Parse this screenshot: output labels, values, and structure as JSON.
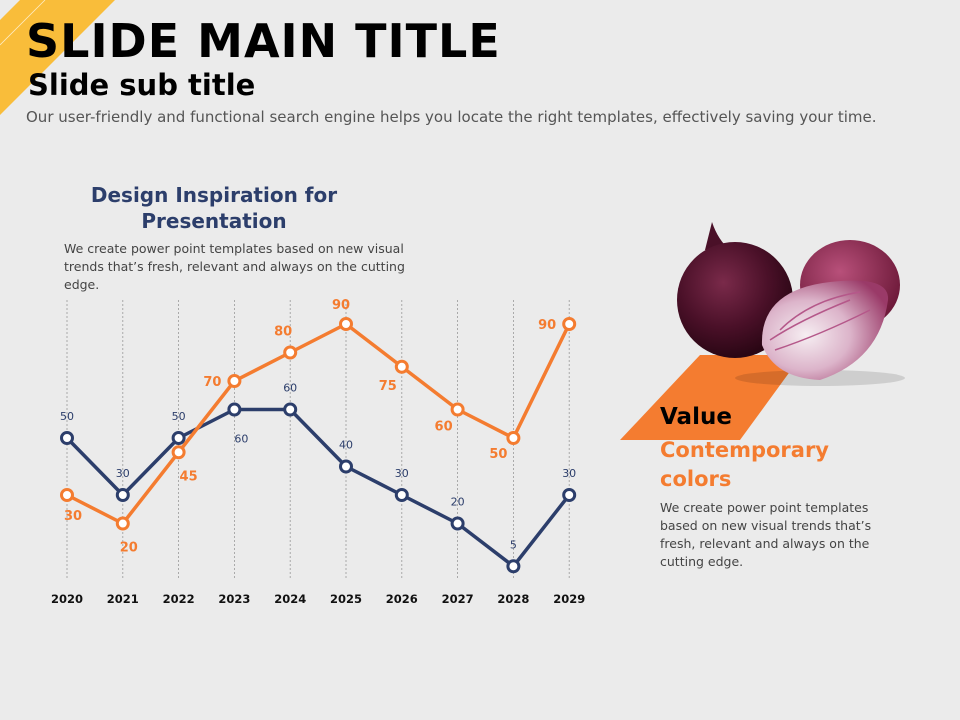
{
  "slide": {
    "main_title": "SLIDE MAIN TITLE",
    "sub_title": "Slide sub title",
    "intro": "Our user-friendly and functional search engine helps you locate the right templates, effectively saving your time."
  },
  "section": {
    "title": "Design Inspiration for Presentation",
    "body": "We create power point templates based on new visual trends that’s fresh, relevant and always on the cutting edge."
  },
  "value_panel": {
    "title": "Value",
    "subtitle": "Contemporary colors",
    "body": "We create power point templates based on new visual trends that’s fresh, relevant and always on the cutting edge."
  },
  "colors": {
    "accent_yellow": "#f9bd3a",
    "accent_orange": "#f47c30",
    "navy": "#2c3e6b"
  },
  "chart_data": {
    "type": "line",
    "title": "",
    "x": [
      "2020",
      "2021",
      "2022",
      "2023",
      "2024",
      "2025",
      "2026",
      "2027",
      "2028",
      "2029"
    ],
    "series": [
      {
        "name": "Navy series",
        "color": "#2c3e6b",
        "values": [
          50,
          30,
          50,
          60,
          60,
          40,
          30,
          20,
          5,
          30
        ]
      },
      {
        "name": "Orange series",
        "color": "#f47c30",
        "values": [
          30,
          20,
          45,
          70,
          80,
          90,
          75,
          60,
          50,
          90
        ]
      }
    ],
    "ylim": [
      0,
      100
    ],
    "grid": "vertical dashed",
    "legend": "none"
  }
}
